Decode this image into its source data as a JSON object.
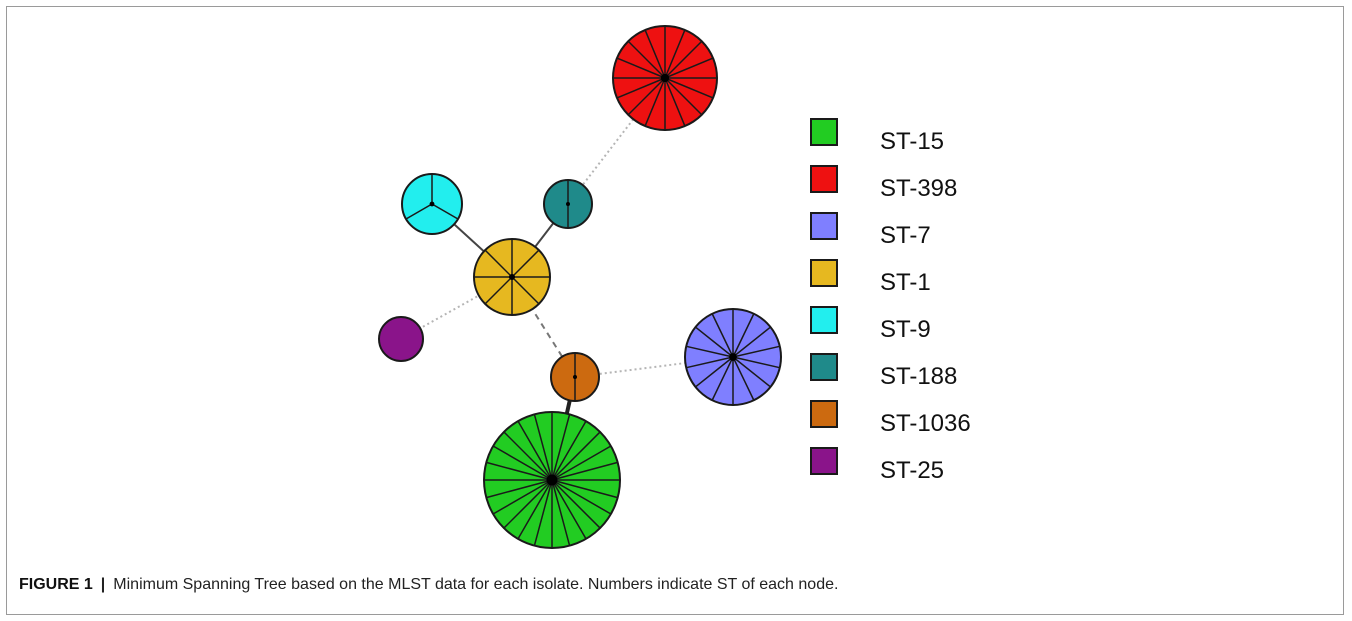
{
  "figure": {
    "label": "FIGURE 1",
    "separator": "|",
    "caption": "Minimum Spanning Tree based on the MLST data for each isolate. Numbers indicate ST of each node."
  },
  "legend": [
    {
      "label": "ST-15",
      "color": "#22cc22"
    },
    {
      "label": "ST-398",
      "color": "#ee1111"
    },
    {
      "label": "ST-7",
      "color": "#7f7fff"
    },
    {
      "label": "ST-1",
      "color": "#e6b820"
    },
    {
      "label": "ST-9",
      "color": "#22eeee"
    },
    {
      "label": "ST-188",
      "color": "#1f8a8a"
    },
    {
      "label": "ST-1036",
      "color": "#cc6a10"
    },
    {
      "label": "ST-25",
      "color": "#8a148a"
    }
  ],
  "nodes": [
    {
      "st": "ST-15",
      "isolates": 24
    },
    {
      "st": "ST-398",
      "isolates": 16
    },
    {
      "st": "ST-7",
      "isolates": 14
    },
    {
      "st": "ST-1",
      "isolates": 8
    },
    {
      "st": "ST-9",
      "isolates": 3
    },
    {
      "st": "ST-188",
      "isolates": 2
    },
    {
      "st": "ST-1036",
      "isolates": 2
    },
    {
      "st": "ST-25",
      "isolates": 1
    }
  ],
  "edges": [
    {
      "from": "ST-1",
      "to": "ST-9",
      "style": "solid"
    },
    {
      "from": "ST-1",
      "to": "ST-188",
      "style": "solid"
    },
    {
      "from": "ST-188",
      "to": "ST-398",
      "style": "dotted"
    },
    {
      "from": "ST-1",
      "to": "ST-25",
      "style": "dotted"
    },
    {
      "from": "ST-1",
      "to": "ST-1036",
      "style": "dashed"
    },
    {
      "from": "ST-1036",
      "to": "ST-7",
      "style": "dotted"
    },
    {
      "from": "ST-1036",
      "to": "ST-15",
      "style": "thick"
    }
  ]
}
